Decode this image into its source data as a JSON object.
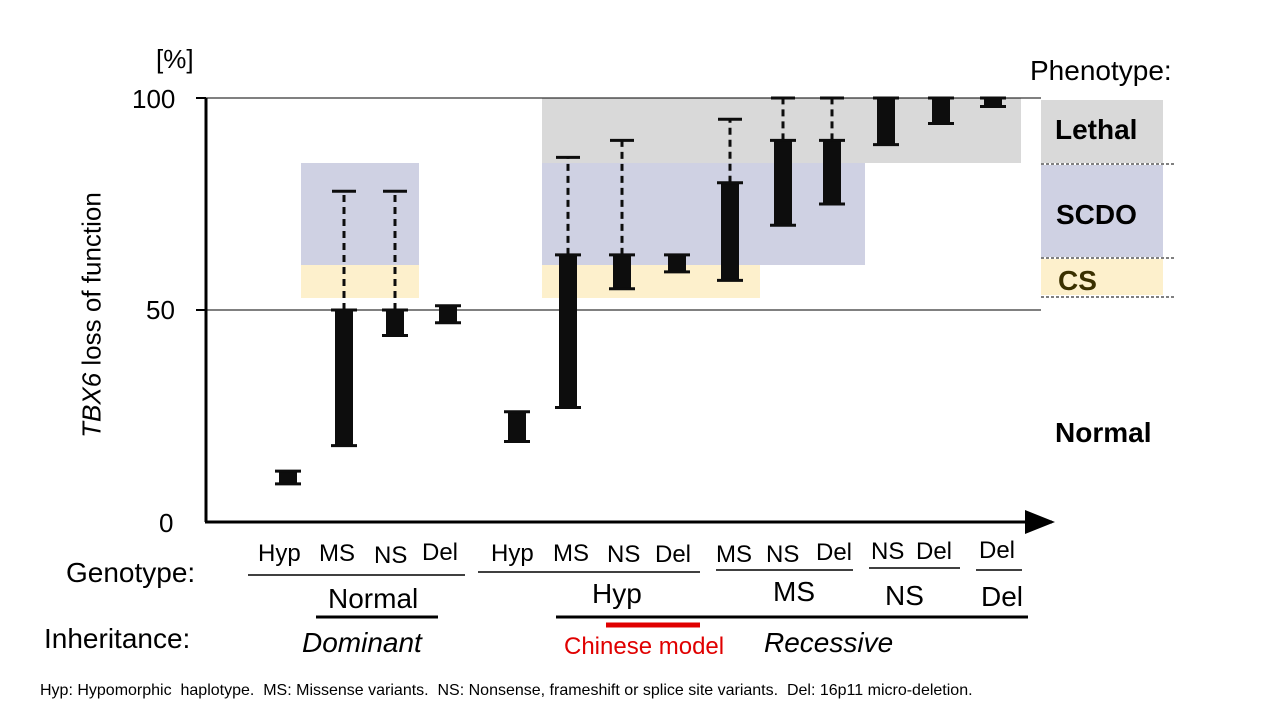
{
  "chart_data": {
    "type": "range",
    "ylabel_italic": "TBX6",
    "ylabel_rest": " loss of function",
    "y_unit": "[%]",
    "ylim": [
      0,
      100
    ],
    "y_ticks": [
      0,
      50,
      100
    ],
    "bars": [
      {
        "genotype": "Hyp",
        "group": "Normal",
        "inheritance": "Dominant",
        "solid_min": 9,
        "solid_max": 12,
        "dashed_max": null
      },
      {
        "genotype": "MS",
        "group": "Normal",
        "inheritance": "Dominant",
        "solid_min": 18,
        "solid_max": 50,
        "dashed_max": 78
      },
      {
        "genotype": "NS",
        "group": "Normal",
        "inheritance": "Dominant",
        "solid_min": 44,
        "solid_max": 50,
        "dashed_max": 78
      },
      {
        "genotype": "Del",
        "group": "Normal",
        "inheritance": "Dominant",
        "solid_min": 47,
        "solid_max": 51,
        "dashed_max": null
      },
      {
        "genotype": "Hyp",
        "group": "Hyp",
        "inheritance": "Recessive",
        "solid_min": 19,
        "solid_max": 26,
        "dashed_max": null
      },
      {
        "genotype": "MS",
        "group": "Hyp",
        "inheritance": "Recessive",
        "solid_min": 27,
        "solid_max": 63,
        "dashed_max": 86
      },
      {
        "genotype": "NS",
        "group": "Hyp",
        "inheritance": "Recessive",
        "solid_min": 55,
        "solid_max": 63,
        "dashed_max": 90
      },
      {
        "genotype": "Del",
        "group": "Hyp",
        "inheritance": "Recessive",
        "solid_min": 59,
        "solid_max": 63,
        "dashed_max": null
      },
      {
        "genotype": "MS",
        "group": "MS",
        "inheritance": "Recessive",
        "solid_min": 57,
        "solid_max": 80,
        "dashed_max": 95
      },
      {
        "genotype": "NS",
        "group": "MS",
        "inheritance": "Recessive",
        "solid_min": 70,
        "solid_max": 90,
        "dashed_max": 100
      },
      {
        "genotype": "Del",
        "group": "MS",
        "inheritance": "Recessive",
        "solid_min": 75,
        "solid_max": 90,
        "dashed_max": 100
      },
      {
        "genotype": "NS",
        "group": "NS",
        "inheritance": "Recessive",
        "solid_min": 89,
        "solid_max": 100,
        "dashed_max": null
      },
      {
        "genotype": "Del",
        "group": "NS",
        "inheritance": "Recessive",
        "solid_min": 94,
        "solid_max": 100,
        "dashed_max": null
      },
      {
        "genotype": "Del",
        "group": "Del",
        "inheritance": "Recessive",
        "solid_min": 98,
        "solid_max": 100,
        "dashed_max": null
      }
    ],
    "phenotype_bands": [
      {
        "name": "Lethal",
        "ymin": 85,
        "ymax": 100,
        "color": "#d9d9d9"
      },
      {
        "name": "SCDO",
        "ymin": 62,
        "ymax": 85,
        "color": "#cfd1e3"
      },
      {
        "name": "CS",
        "ymin": 54,
        "ymax": 62,
        "color": "#fdf0cc"
      },
      {
        "name": "Normal",
        "ymin": 0,
        "ymax": 54,
        "color": "#ffffff"
      }
    ]
  },
  "labels": {
    "phenotype_title": "Phenotype:",
    "lethal": "Lethal",
    "scdo": "SCDO",
    "cs": "CS",
    "normal_phenotype": "Normal",
    "genotype_title": "Genotype:",
    "inheritance_title": "Inheritance:",
    "groups": {
      "normal": "Normal",
      "hyp": "Hyp",
      "ms": "MS",
      "ns": "NS",
      "del": "Del"
    },
    "dominant": "Dominant",
    "recessive": "Recessive",
    "chinese_model": "Chinese model",
    "footnote": "Hyp: Hypomorphic  haplotype.  MS: Missense variants.  NS: Nonsense, frameshift or splice site variants.  Del: 16p11 micro-deletion."
  },
  "colors": {
    "bar": "#0d0d0d",
    "chinese_model": "#e00000",
    "lethal_band": "#d9d9d9",
    "scdo_band": "#cfd1e3",
    "cs_band": "#fdf0cc"
  }
}
